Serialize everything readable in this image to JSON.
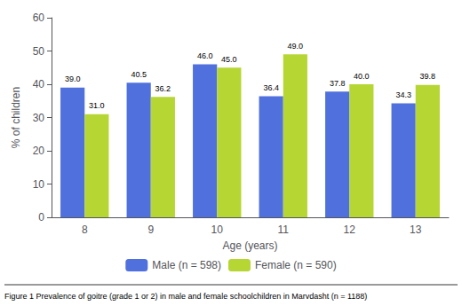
{
  "chart_data": {
    "type": "bar",
    "categories": [
      "8",
      "9",
      "10",
      "11",
      "12",
      "13"
    ],
    "series": [
      {
        "name": "Male (n = 598)",
        "values": [
          39.0,
          40.5,
          46.0,
          36.4,
          37.8,
          34.3
        ],
        "value_labels": [
          "39.0",
          "40.5",
          "46.0",
          "36.4",
          "37.8",
          "34.3"
        ]
      },
      {
        "name": "Female (n = 590)",
        "values": [
          31.0,
          36.2,
          45.0,
          49.0,
          40.0,
          39.8
        ],
        "value_labels": [
          "31.0",
          "36.2",
          "45.0",
          "49.0",
          "40.0",
          "39.8"
        ]
      }
    ],
    "xlabel": "Age (years)",
    "ylabel": "% of children",
    "ylim": [
      0,
      60
    ],
    "yticks": [
      0,
      10,
      20,
      30,
      40,
      50,
      60
    ],
    "grid": false,
    "legend": "bottom",
    "data_labels": true,
    "caption": "Figure 1 Prevalence of goitre (grade 1 or 2) in male and female schoolchildren in Marvdasht (n = 1188)"
  }
}
